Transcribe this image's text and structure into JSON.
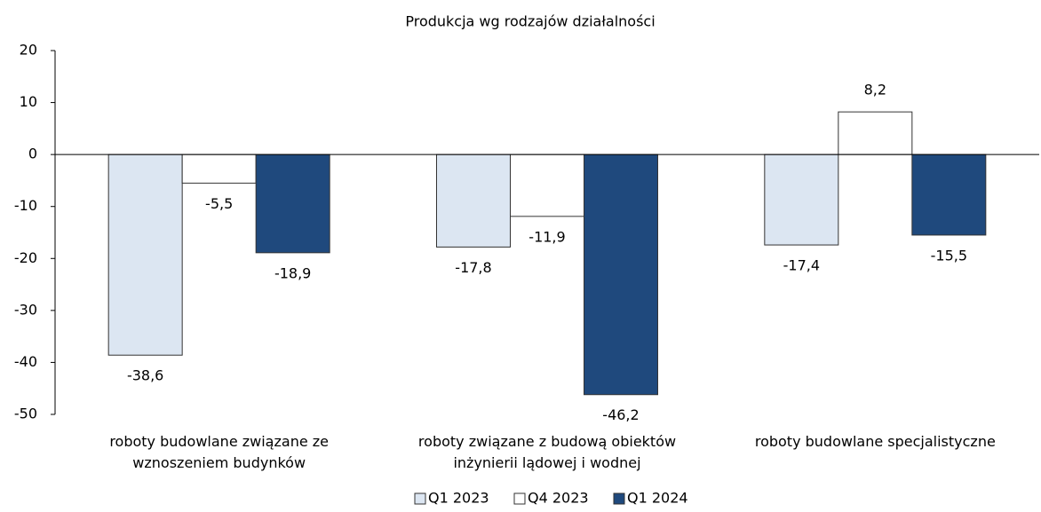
{
  "chart_data": {
    "type": "bar",
    "title": "Produkcja wg rodzajów działalności",
    "categories": [
      "roboty budowlane związane ze\nwznoszeniem budynków",
      "roboty związane z budową obiektów\ninżynierii lądowej i wodnej",
      "roboty budowlane specjalistyczne"
    ],
    "series": [
      {
        "name": "Q1 2023",
        "color": "#dce6f2",
        "values": [
          -38.6,
          -17.8,
          -17.4
        ],
        "value_labels": [
          "-38,6",
          "-17,8",
          "-17,4"
        ]
      },
      {
        "name": "Q4 2023",
        "color": "#ffffff",
        "values": [
          -5.5,
          -11.9,
          8.2
        ],
        "value_labels": [
          "-5,5",
          "-11,9",
          "8,2"
        ]
      },
      {
        "name": "Q1 2024",
        "color": "#1f497d",
        "values": [
          -18.9,
          -46.2,
          -15.5
        ],
        "value_labels": [
          "-18,9",
          "-46,2",
          "-15,5"
        ]
      }
    ],
    "ylim": [
      -50,
      20
    ],
    "yticks": [
      -50,
      -40,
      -30,
      -20,
      -10,
      0,
      10,
      20
    ],
    "legend": "bottom"
  }
}
